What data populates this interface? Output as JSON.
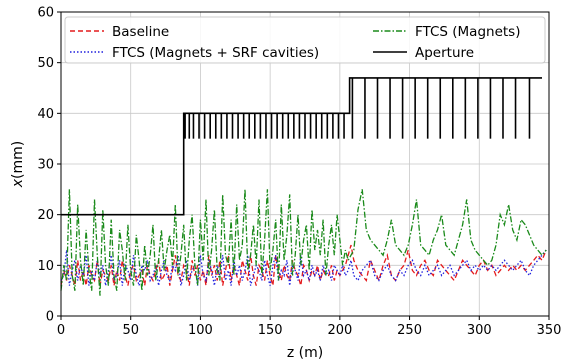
{
  "chart_data": {
    "type": "line",
    "xlabel": "z (m)",
    "ylabel_italic": "x",
    "ylabel_unit": "(mm)",
    "xlim": [
      0,
      350
    ],
    "ylim": [
      0,
      60
    ],
    "xticks": [
      0,
      50,
      100,
      150,
      200,
      250,
      300,
      350
    ],
    "yticks": [
      0,
      10,
      20,
      30,
      40,
      50,
      60
    ],
    "grid": true,
    "legend_position": "top",
    "series": [
      {
        "name": "Baseline",
        "style": "dashed",
        "color": "#e41a1c",
        "x": [
          0,
          2,
          4,
          6,
          8,
          10,
          12,
          14,
          16,
          18,
          20,
          22,
          24,
          26,
          28,
          30,
          32,
          34,
          36,
          38,
          40,
          42,
          44,
          46,
          48,
          50,
          52,
          54,
          56,
          58,
          60,
          62,
          64,
          66,
          68,
          70,
          72,
          74,
          76,
          78,
          80,
          82,
          84,
          86,
          88,
          90,
          92,
          94,
          96,
          98,
          100,
          102,
          104,
          106,
          108,
          110,
          112,
          114,
          116,
          118,
          120,
          122,
          124,
          126,
          128,
          130,
          132,
          134,
          136,
          138,
          140,
          142,
          144,
          146,
          148,
          150,
          152,
          154,
          156,
          158,
          160,
          162,
          164,
          166,
          168,
          170,
          172,
          174,
          176,
          178,
          180,
          182,
          184,
          186,
          188,
          190,
          192,
          194,
          196,
          198,
          200,
          202,
          204,
          206,
          208,
          210,
          213,
          216,
          219,
          222,
          225,
          228,
          231,
          234,
          237,
          240,
          243,
          246,
          249,
          252,
          255,
          258,
          261,
          264,
          267,
          270,
          273,
          276,
          279,
          282,
          285,
          288,
          291,
          294,
          297,
          300,
          303,
          306,
          309,
          312,
          315,
          318,
          321,
          324,
          327,
          330,
          333,
          336,
          339,
          342,
          345,
          348
        ],
        "y": [
          6,
          9,
          7,
          10,
          8,
          6,
          11,
          7,
          9,
          6,
          10,
          8,
          7,
          11,
          6,
          9,
          8,
          7,
          10,
          6,
          9,
          7,
          11,
          8,
          6,
          9,
          10,
          7,
          8,
          9,
          6,
          10,
          8,
          7,
          9,
          11,
          7,
          8,
          10,
          6,
          9,
          12,
          8,
          7,
          10,
          9,
          6,
          11,
          8,
          10,
          7,
          9,
          6,
          12,
          8,
          10,
          7,
          11,
          6,
          9,
          12,
          7,
          10,
          8,
          6,
          11,
          9,
          7,
          12,
          8,
          6,
          10,
          9,
          7,
          11,
          8,
          6,
          12,
          9,
          7,
          10,
          8,
          7,
          11,
          9,
          8,
          6,
          10,
          9,
          7,
          9,
          8,
          10,
          7,
          9,
          8,
          8,
          10,
          7,
          9,
          8,
          9,
          10,
          12,
          14,
          11,
          9,
          8,
          7,
          11,
          9,
          7,
          10,
          12,
          8,
          7,
          9,
          10,
          13,
          9,
          8,
          10,
          11,
          9,
          8,
          11,
          10,
          9,
          8,
          7,
          9,
          11,
          10,
          9,
          8,
          10,
          11,
          9,
          10,
          8,
          9,
          10,
          9,
          10,
          9,
          10,
          9,
          10,
          11,
          12,
          11,
          13
        ]
      },
      {
        "name": "FTCS (Magnets + SRF cavities)",
        "style": "dotted",
        "color": "#1f1fdd",
        "x": [
          0,
          2,
          4,
          6,
          8,
          10,
          12,
          14,
          16,
          18,
          20,
          22,
          24,
          26,
          28,
          30,
          32,
          34,
          36,
          38,
          40,
          42,
          44,
          46,
          48,
          50,
          52,
          54,
          56,
          58,
          60,
          62,
          64,
          66,
          68,
          70,
          72,
          74,
          76,
          78,
          80,
          82,
          84,
          86,
          88,
          90,
          92,
          94,
          96,
          98,
          100,
          102,
          104,
          106,
          108,
          110,
          112,
          114,
          116,
          118,
          120,
          122,
          124,
          126,
          128,
          130,
          132,
          134,
          136,
          138,
          140,
          142,
          144,
          146,
          148,
          150,
          152,
          154,
          156,
          158,
          160,
          162,
          164,
          166,
          168,
          170,
          172,
          174,
          176,
          178,
          180,
          182,
          184,
          186,
          188,
          190,
          192,
          194,
          196,
          198,
          200,
          202,
          204,
          206,
          208,
          210,
          213,
          216,
          219,
          222,
          225,
          228,
          231,
          234,
          237,
          240,
          243,
          246,
          249,
          252,
          255,
          258,
          261,
          264,
          267,
          270,
          273,
          276,
          279,
          282,
          285,
          288,
          291,
          294,
          297,
          300,
          303,
          306,
          309,
          312,
          315,
          318,
          321,
          324,
          327,
          330,
          333,
          336,
          339,
          342,
          345,
          348
        ],
        "y": [
          7,
          8,
          13,
          6,
          9,
          11,
          7,
          10,
          8,
          12,
          6,
          9,
          7,
          11,
          8,
          10,
          6,
          9,
          12,
          7,
          8,
          11,
          6,
          10,
          9,
          7,
          12,
          8,
          6,
          10,
          9,
          11,
          7,
          8,
          10,
          6,
          9,
          11,
          8,
          7,
          10,
          9,
          12,
          6,
          8,
          11,
          7,
          9,
          10,
          6,
          12,
          8,
          7,
          11,
          9,
          6,
          10,
          8,
          12,
          7,
          9,
          6,
          11,
          8,
          10,
          7,
          9,
          12,
          6,
          8,
          10,
          9,
          7,
          11,
          8,
          6,
          10,
          12,
          7,
          9,
          8,
          11,
          6,
          10,
          9,
          7,
          12,
          8,
          9,
          7,
          10,
          8,
          9,
          7,
          10,
          8,
          9,
          7,
          10,
          9,
          8,
          10,
          8,
          9,
          11,
          8,
          7,
          9,
          10,
          11,
          8,
          7,
          9,
          10,
          8,
          7,
          9,
          8,
          10,
          11,
          9,
          8,
          10,
          8,
          9,
          10,
          8,
          9,
          10,
          8,
          9,
          10,
          11,
          9,
          10,
          9,
          10,
          9,
          10,
          9,
          10,
          11,
          10,
          9,
          10,
          11,
          9,
          8,
          10,
          11,
          12,
          13
        ]
      },
      {
        "name": "FTCS (Magnets)",
        "style": "dashdot",
        "color": "#1a8a1a",
        "x": [
          0,
          2,
          4,
          6,
          8,
          10,
          12,
          14,
          16,
          18,
          20,
          22,
          24,
          26,
          28,
          30,
          32,
          34,
          36,
          38,
          40,
          42,
          44,
          46,
          48,
          50,
          52,
          54,
          56,
          58,
          60,
          62,
          64,
          66,
          68,
          70,
          72,
          74,
          76,
          78,
          80,
          82,
          84,
          86,
          88,
          90,
          92,
          94,
          96,
          98,
          100,
          102,
          104,
          106,
          108,
          110,
          112,
          114,
          116,
          118,
          120,
          122,
          124,
          126,
          128,
          130,
          132,
          134,
          136,
          138,
          140,
          142,
          144,
          146,
          148,
          150,
          152,
          154,
          156,
          158,
          160,
          162,
          164,
          166,
          168,
          170,
          172,
          174,
          176,
          178,
          180,
          182,
          184,
          186,
          188,
          190,
          192,
          194,
          196,
          198,
          200,
          202,
          204,
          206,
          208,
          210,
          213,
          216,
          219,
          222,
          225,
          228,
          231,
          234,
          237,
          240,
          243,
          246,
          249,
          252,
          255,
          258,
          261,
          264,
          267,
          270,
          273,
          276,
          279,
          282,
          285,
          288,
          291,
          294,
          297,
          300,
          303,
          306,
          309,
          312,
          315,
          318,
          321,
          324,
          327,
          330,
          333,
          336,
          339,
          342,
          345,
          348
        ],
        "y": [
          5,
          10,
          7,
          25,
          8,
          5,
          22,
          11,
          6,
          17,
          9,
          5,
          23,
          12,
          4,
          21,
          10,
          6,
          19,
          8,
          5,
          17,
          13,
          7,
          18,
          9,
          6,
          16,
          11,
          5,
          14,
          8,
          12,
          18,
          7,
          11,
          17,
          9,
          13,
          16,
          10,
          22,
          8,
          12,
          18,
          7,
          15,
          20,
          10,
          6,
          19,
          11,
          23,
          8,
          13,
          21,
          9,
          7,
          24,
          12,
          10,
          19,
          8,
          22,
          11,
          14,
          25,
          9,
          12,
          18,
          10,
          23,
          8,
          15,
          25,
          9,
          13,
          19,
          7,
          22,
          11,
          16,
          24,
          8,
          12,
          20,
          10,
          15,
          18,
          9,
          21,
          13,
          17,
          12,
          19,
          8,
          14,
          18,
          12,
          20,
          15,
          10,
          13,
          11,
          12,
          13,
          21,
          25,
          17,
          15,
          14,
          13,
          12,
          15,
          19,
          14,
          13,
          12,
          14,
          18,
          23,
          14,
          13,
          12,
          15,
          17,
          20,
          14,
          13,
          12,
          15,
          18,
          23,
          15,
          13,
          12,
          11,
          10,
          11,
          14,
          20,
          18,
          22,
          17,
          15,
          19,
          18,
          16,
          14,
          13,
          12,
          13
        ]
      },
      {
        "name": "Aperture",
        "style": "solid",
        "color": "#000000",
        "x": [
          0,
          88,
          88,
          207,
          207,
          345
        ],
        "y": [
          20,
          20,
          40,
          40,
          47,
          47
        ],
        "notches": [
          {
            "z": [
              89,
              92,
              95,
              99,
              103,
              107,
              111,
              115,
              119,
              123,
              127,
              131,
              135,
              139,
              143,
              147,
              151,
              155,
              159,
              163,
              167,
              171,
              175,
              179,
              183,
              187,
              191,
              195,
              199,
              203
            ],
            "from": 40,
            "to": 35
          },
          {
            "z": [
              209,
              218,
              227,
              236,
              245,
              254,
              263,
              272,
              281,
              290,
              299,
              308,
              317,
              326,
              336
            ],
            "from": 47,
            "to": 35
          }
        ]
      }
    ]
  }
}
